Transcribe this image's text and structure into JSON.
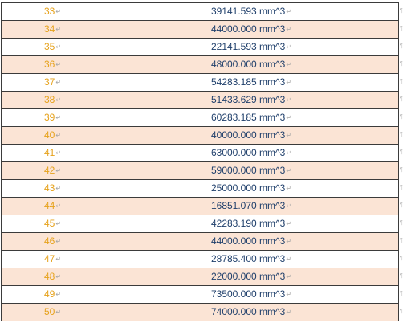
{
  "rows": [
    {
      "index": "33",
      "volume": "39141.593 mm^3"
    },
    {
      "index": "34",
      "volume": "44000.000 mm^3"
    },
    {
      "index": "35",
      "volume": "22141.593 mm^3"
    },
    {
      "index": "36",
      "volume": "48000.000 mm^3"
    },
    {
      "index": "37",
      "volume": "54283.185 mm^3"
    },
    {
      "index": "38",
      "volume": "51433.629 mm^3"
    },
    {
      "index": "39",
      "volume": "60283.185 mm^3"
    },
    {
      "index": "40",
      "volume": "40000.000 mm^3"
    },
    {
      "index": "41",
      "volume": "63000.000 mm^3"
    },
    {
      "index": "42",
      "volume": "59000.000 mm^3"
    },
    {
      "index": "43",
      "volume": "25000.000 mm^3"
    },
    {
      "index": "44",
      "volume": "16851.070 mm^3"
    },
    {
      "index": "45",
      "volume": "42283.190 mm^3"
    },
    {
      "index": "46",
      "volume": "44000.000 mm^3"
    },
    {
      "index": "47",
      "volume": "28785.400 mm^3"
    },
    {
      "index": "48",
      "volume": "22000.000 mm^3"
    },
    {
      "index": "49",
      "volume": "73500.000 mm^3"
    },
    {
      "index": "50",
      "volume": "74000.000 mm^3"
    }
  ],
  "colors": {
    "index_text": "#e6a21c",
    "volume_text": "#1f3f6b",
    "shaded_row": "#fbe4d5",
    "border": "#3b3b3b",
    "formatting_mark": "#a6a6a6"
  },
  "formatting_mark_icons": {
    "cell_end": "return-arrow-icon",
    "row_end": "paragraph-mark-icon"
  }
}
